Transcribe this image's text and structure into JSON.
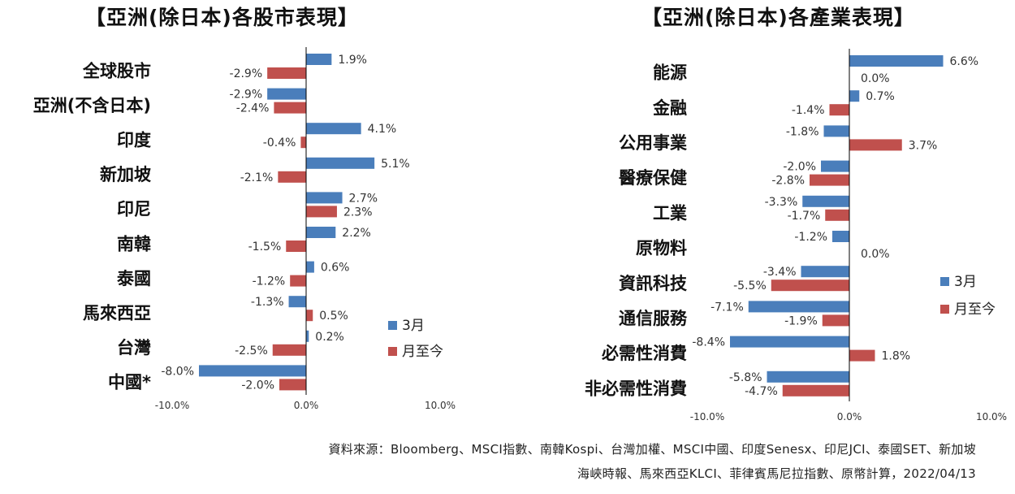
{
  "colors": {
    "march": "#4a7ebb",
    "mtd": "#c0504d",
    "axis": "#000000"
  },
  "chart_data": [
    {
      "type": "bar",
      "orientation": "horizontal",
      "title": "【亞洲(除日本)各股市表現】",
      "categories": [
        "全球股市",
        "亞洲(不含日本)",
        "印度",
        "新加坡",
        "印尼",
        "南韓",
        "泰國",
        "馬來西亞",
        "台灣",
        "中國*"
      ],
      "series": [
        {
          "name": "3月",
          "values": [
            1.9,
            -2.9,
            4.1,
            5.1,
            2.7,
            2.2,
            0.6,
            -1.3,
            0.2,
            -8.0
          ],
          "labels": [
            "1.9%",
            "-2.9%",
            "4.1%",
            "5.1%",
            "2.7%",
            "2.2%",
            "0.6%",
            "-1.3%",
            "0.2%",
            "-8.0%"
          ]
        },
        {
          "name": "月至今",
          "values": [
            -2.9,
            -2.4,
            -0.4,
            -2.1,
            2.3,
            -1.5,
            -1.2,
            0.5,
            -2.5,
            -2.0
          ],
          "labels": [
            "-2.9%",
            "-2.4%",
            "-0.4%",
            "-2.1%",
            "2.3%",
            "-1.5%",
            "-1.2%",
            "0.5%",
            "-2.5%",
            "-2.0%"
          ]
        }
      ],
      "xlim": [
        -10,
        10
      ],
      "xticks": [
        "-10.0%",
        "0.0%",
        "10.0%"
      ],
      "legend": "right"
    },
    {
      "type": "bar",
      "orientation": "horizontal",
      "title": "【亞洲(除日本)各產業表現】",
      "categories": [
        "能源",
        "金融",
        "公用事業",
        "醫療保健",
        "工業",
        "原物料",
        "資訊科技",
        "通信服務",
        "必需性消費",
        "非必需性消費"
      ],
      "series": [
        {
          "name": "3月",
          "values": [
            6.6,
            0.7,
            -1.8,
            -2.0,
            -3.3,
            -1.2,
            -3.4,
            -7.1,
            -8.4,
            -5.8
          ],
          "labels": [
            "6.6%",
            "0.7%",
            "-1.8%",
            "-2.0%",
            "-3.3%",
            "-1.2%",
            "-3.4%",
            "-7.1%",
            "-8.4%",
            "-5.8%"
          ]
        },
        {
          "name": "月至今",
          "values": [
            0.0,
            -1.4,
            3.7,
            -2.8,
            -1.7,
            0.0,
            -5.5,
            -1.9,
            1.8,
            -4.7
          ],
          "labels": [
            "0.0%",
            "-1.4%",
            "3.7%",
            "-2.8%",
            "-1.7%",
            "0.0%",
            "-5.5%",
            "-1.9%",
            "1.8%",
            "-4.7%"
          ]
        }
      ],
      "xlim": [
        -10,
        10
      ],
      "xticks": [
        "-10.0%",
        "0.0%",
        "10.0%"
      ],
      "legend": "right"
    }
  ],
  "source": {
    "line1": "資料來源：Bloomberg、MSCI指數、南韓Kospi、台灣加權、MSCI中國、印度Senesx、印尼JCI、泰國SET、新加坡",
    "line2": "海峽時報、馬來西亞KLCI、菲律賓馬尼拉指數、原幣計算，2022/04/13"
  }
}
